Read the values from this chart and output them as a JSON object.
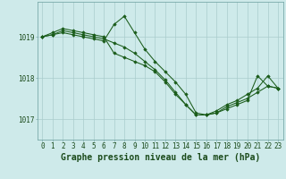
{
  "background_color": "#ceeaea",
  "grid_color": "#aacccc",
  "line_color": "#1a5c1a",
  "marker_color": "#1a5c1a",
  "title": "Graphe pression niveau de la mer (hPa)",
  "tick_fontsize": 5.5,
  "title_fontsize": 7.0,
  "xlim": [
    -0.5,
    23.5
  ],
  "ylim": [
    1016.5,
    1019.85
  ],
  "yticks": [
    1017,
    1018,
    1019
  ],
  "series": [
    [
      1019.0,
      1019.1,
      1019.2,
      1019.15,
      1019.1,
      1019.05,
      1019.0,
      1018.6,
      1018.5,
      1018.4,
      1018.3,
      1018.15,
      1017.9,
      1017.6,
      1017.35,
      1017.1,
      1017.1,
      1017.15,
      1017.25,
      1017.35,
      1017.45,
      1018.05,
      1017.8,
      1017.75
    ],
    [
      1019.0,
      1019.05,
      1019.15,
      1019.1,
      1019.05,
      1019.0,
      1018.95,
      1018.85,
      1018.75,
      1018.6,
      1018.4,
      1018.2,
      1017.95,
      1017.65,
      1017.35,
      1017.1,
      1017.1,
      1017.15,
      1017.3,
      1017.4,
      1017.5,
      1017.65,
      1017.8,
      1017.75
    ],
    [
      1019.0,
      1019.05,
      1019.1,
      1019.05,
      1019.0,
      1018.95,
      1018.9,
      1019.3,
      1019.5,
      1019.1,
      1018.7,
      1018.4,
      1018.15,
      1017.9,
      1017.6,
      1017.15,
      1017.1,
      1017.2,
      1017.35,
      1017.45,
      1017.6,
      1017.75,
      1018.05,
      1017.75
    ]
  ]
}
